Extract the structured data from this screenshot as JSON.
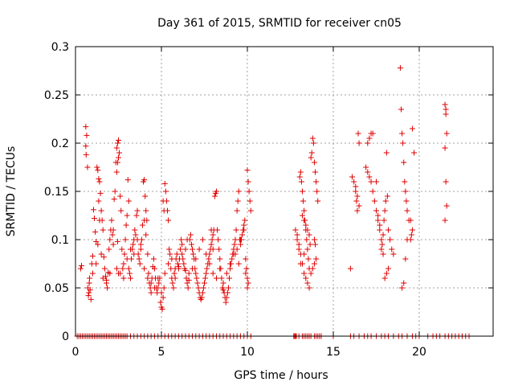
{
  "chart_data": {
    "type": "scatter",
    "title": "Day 361 of 2015, SRMTID for receiver cn05",
    "xlabel": "GPS time / hours",
    "ylabel": "SRMTID / TECUs",
    "xlim": [
      0,
      24.3
    ],
    "ylim": [
      0,
      0.3
    ],
    "xticks": [
      0,
      5,
      10,
      15,
      20
    ],
    "xtick_labels": [
      "0",
      "5",
      "10",
      "15",
      "20"
    ],
    "yticks": [
      0,
      0.05,
      0.1,
      0.15,
      0.2,
      0.25,
      0.3
    ],
    "ytick_labels": [
      "0",
      "0.05",
      "0.1",
      "0.15",
      "0.2",
      "0.25",
      "0.3"
    ],
    "grid": true,
    "marker": "plus",
    "marker_color": "#e00000",
    "series": [
      {
        "name": "SRMTID",
        "x": [
          0.3,
          0.35,
          0.6,
          0.65,
          0.6,
          0.62,
          0.7,
          0.72,
          0.75,
          0.78,
          0.8,
          0.82,
          0.85,
          0.9,
          0.95,
          1.0,
          1.05,
          1.1,
          1.15,
          1.2,
          1.25,
          1.3,
          1.35,
          1.4,
          1.45,
          1.5,
          1.55,
          1.6,
          1.65,
          1.7,
          1.75,
          1.8,
          1.85,
          1.9,
          1.95,
          2.0,
          2.05,
          2.1,
          2.15,
          2.2,
          2.25,
          2.3,
          2.35,
          2.4,
          2.45,
          2.5,
          2.55,
          2.6,
          2.65,
          2.7,
          2.75,
          2.8,
          2.85,
          2.9,
          2.95,
          3.0,
          3.05,
          3.1,
          3.15,
          3.2,
          3.25,
          3.3,
          3.35,
          3.4,
          3.45,
          3.5,
          3.55,
          3.6,
          3.65,
          3.7,
          3.75,
          3.8,
          3.85,
          3.9,
          3.95,
          4.0,
          4.05,
          4.1,
          4.15,
          4.2,
          4.25,
          4.3,
          4.35,
          4.4,
          4.45,
          4.5,
          4.55,
          4.6,
          4.65,
          4.7,
          4.75,
          4.8,
          4.85,
          4.9,
          4.95,
          5.0,
          5.05,
          5.1,
          5.15,
          5.2,
          5.25,
          5.3,
          5.35,
          5.4,
          5.45,
          5.5,
          5.55,
          5.6,
          5.65,
          5.7,
          5.75,
          5.8,
          5.85,
          5.9,
          5.95,
          6.0,
          6.05,
          6.1,
          6.15,
          6.2,
          6.25,
          6.3,
          6.35,
          6.4,
          6.45,
          6.5,
          6.55,
          6.6,
          6.65,
          6.7,
          6.75,
          6.8,
          6.85,
          6.9,
          6.95,
          7.0,
          7.05,
          7.1,
          7.15,
          7.2,
          7.25,
          7.3,
          7.35,
          7.4,
          7.45,
          7.5,
          7.55,
          7.6,
          7.65,
          7.7,
          7.75,
          7.8,
          7.85,
          7.9,
          7.95,
          8.0,
          8.05,
          8.1,
          8.15,
          8.2,
          8.25,
          8.3,
          8.35,
          8.4,
          8.45,
          8.5,
          8.55,
          8.6,
          8.65,
          8.7,
          8.75,
          8.8,
          8.85,
          8.9,
          8.95,
          9.0,
          9.05,
          9.1,
          9.15,
          9.2,
          9.25,
          9.3,
          9.35,
          9.4,
          9.45,
          9.5,
          9.55,
          9.6,
          9.65,
          9.7,
          9.75,
          9.8,
          9.85,
          9.9,
          9.95,
          10.0,
          10.05,
          10.1,
          10.15,
          10.2,
          1.0,
          1.2,
          1.4,
          1.6,
          1.8,
          2.0,
          2.2,
          2.4,
          2.6,
          2.8,
          3.0,
          3.2,
          3.4,
          3.6,
          3.8,
          4.0,
          4.2,
          4.4,
          4.6,
          4.8,
          5.0,
          5.2,
          5.4,
          5.6,
          5.8,
          6.0,
          6.2,
          6.4,
          6.6,
          6.8,
          7.0,
          7.2,
          7.4,
          7.6,
          7.8,
          8.0,
          8.2,
          8.4,
          8.6,
          8.8,
          9.0,
          9.2,
          9.4,
          9.6,
          9.8,
          10.0,
          1.3,
          1.35,
          1.5,
          2.4,
          2.45,
          2.5,
          2.45,
          2.5,
          3.1,
          4.0,
          4.1,
          5.1,
          5.15,
          6.5,
          7.9,
          8.0,
          9.3,
          9.5,
          9.9,
          10.0,
          10.05,
          12.8,
          12.9,
          13.0,
          13.05,
          13.1,
          13.15,
          13.2,
          13.25,
          13.3,
          13.35,
          13.4,
          13.45,
          13.5,
          13.55,
          13.6,
          13.65,
          13.7,
          13.75,
          13.8,
          13.85,
          13.9,
          13.95,
          14.0,
          14.05,
          14.1,
          12.9,
          13.0,
          13.1,
          13.2,
          13.3,
          13.4,
          13.5,
          13.6,
          13.7,
          13.8,
          13.9,
          14.0,
          13.2,
          13.3,
          13.4,
          13.5,
          13.6,
          13.3,
          13.1,
          13.9,
          13.95,
          16.0,
          16.1,
          16.2,
          16.3,
          16.35,
          16.4,
          16.45,
          16.5,
          16.9,
          17.0,
          17.1,
          17.2,
          17.3,
          17.4,
          17.5,
          17.6,
          17.7,
          17.8,
          17.85,
          17.9,
          17.95,
          18.0,
          18.05,
          18.1,
          18.15,
          18.2,
          18.3,
          18.4,
          18.5,
          16.3,
          16.4,
          16.5,
          17.0,
          17.1,
          17.2,
          17.3,
          17.5,
          17.6,
          17.7,
          17.8,
          17.9,
          18.0,
          18.1,
          18.2,
          18.9,
          18.95,
          19.0,
          19.05,
          19.1,
          19.15,
          19.2,
          19.25,
          19.3,
          19.4,
          19.5,
          19.55,
          19.6,
          19.7,
          19.0,
          19.1,
          19.2,
          19.3,
          19.5,
          19.6,
          21.5,
          21.55,
          21.6,
          21.5,
          21.55,
          21.6,
          21.5,
          21.55,
          0.1,
          0.2,
          0.3,
          0.4,
          0.5,
          0.6,
          0.7,
          0.8,
          0.9,
          1.0,
          1.1,
          1.2,
          1.3,
          1.4,
          1.5,
          1.6,
          1.7,
          1.8,
          1.9,
          2.0,
          2.1,
          2.2,
          2.3,
          2.4,
          2.5,
          2.6,
          2.7,
          2.8,
          2.9,
          3.0,
          3.2,
          3.4,
          3.6,
          3.8,
          4.0,
          4.2,
          4.4,
          4.6,
          4.8,
          5.0,
          5.2,
          5.4,
          5.6,
          5.8,
          6.0,
          6.2,
          6.4,
          6.6,
          6.8,
          7.0,
          7.2,
          7.4,
          7.6,
          7.8,
          8.0,
          8.2,
          8.4,
          8.6,
          8.8,
          9.0,
          9.2,
          9.4,
          9.6,
          9.8,
          10.0,
          10.2,
          12.7,
          12.75,
          12.8,
          12.85,
          13.0,
          13.2,
          13.3,
          13.4,
          13.5,
          13.6,
          13.7,
          13.9,
          14.0,
          14.1,
          14.2,
          14.3,
          15.0,
          16.0,
          16.2,
          16.5,
          16.8,
          17.0,
          17.2,
          17.5,
          17.8,
          18.0,
          18.2,
          18.5,
          18.8,
          19.0,
          19.3,
          19.6,
          19.8,
          20.0,
          20.5,
          20.8,
          21.0,
          21.2,
          21.5,
          21.7,
          21.9,
          22.1,
          22.3,
          22.5,
          22.7,
          22.9
        ],
        "y": [
          0.07,
          0.073,
          0.217,
          0.208,
          0.197,
          0.188,
          0.175,
          0.05,
          0.042,
          0.045,
          0.055,
          0.06,
          0.048,
          0.038,
          0.075,
          0.083,
          0.131,
          0.122,
          0.108,
          0.098,
          0.175,
          0.172,
          0.163,
          0.16,
          0.148,
          0.13,
          0.12,
          0.11,
          0.082,
          0.07,
          0.062,
          0.058,
          0.05,
          0.066,
          0.09,
          0.1,
          0.11,
          0.12,
          0.105,
          0.095,
          0.142,
          0.15,
          0.18,
          0.195,
          0.2,
          0.203,
          0.19,
          0.145,
          0.13,
          0.09,
          0.07,
          0.06,
          0.085,
          0.1,
          0.115,
          0.125,
          0.162,
          0.07,
          0.065,
          0.06,
          0.08,
          0.09,
          0.095,
          0.1,
          0.11,
          0.105,
          0.125,
          0.13,
          0.085,
          0.08,
          0.075,
          0.09,
          0.1,
          0.115,
          0.16,
          0.162,
          0.145,
          0.13,
          0.12,
          0.085,
          0.065,
          0.055,
          0.05,
          0.045,
          0.06,
          0.072,
          0.08,
          0.07,
          0.06,
          0.05,
          0.045,
          0.05,
          0.055,
          0.06,
          0.035,
          0.03,
          0.028,
          0.04,
          0.05,
          0.158,
          0.15,
          0.14,
          0.13,
          0.12,
          0.09,
          0.085,
          0.07,
          0.06,
          0.055,
          0.05,
          0.065,
          0.07,
          0.08,
          0.085,
          0.075,
          0.07,
          0.08,
          0.09,
          0.1,
          0.095,
          0.08,
          0.075,
          0.07,
          0.068,
          0.06,
          0.055,
          0.05,
          0.058,
          0.1,
          0.105,
          0.095,
          0.09,
          0.085,
          0.08,
          0.07,
          0.065,
          0.06,
          0.055,
          0.05,
          0.045,
          0.04,
          0.038,
          0.04,
          0.045,
          0.05,
          0.055,
          0.06,
          0.065,
          0.07,
          0.075,
          0.08,
          0.085,
          0.09,
          0.095,
          0.1,
          0.105,
          0.11,
          0.145,
          0.148,
          0.15,
          0.11,
          0.1,
          0.09,
          0.08,
          0.07,
          0.06,
          0.05,
          0.048,
          0.045,
          0.04,
          0.035,
          0.04,
          0.045,
          0.05,
          0.06,
          0.07,
          0.075,
          0.08,
          0.085,
          0.09,
          0.095,
          0.1,
          0.11,
          0.13,
          0.14,
          0.15,
          0.1,
          0.095,
          0.1,
          0.105,
          0.11,
          0.115,
          0.12,
          0.08,
          0.07,
          0.172,
          0.16,
          0.15,
          0.14,
          0.13,
          0.065,
          0.075,
          0.12,
          0.06,
          0.055,
          0.065,
          0.11,
          0.07,
          0.065,
          0.075,
          0.08,
          0.09,
          0.085,
          0.1,
          0.095,
          0.07,
          0.06,
          0.055,
          0.05,
          0.06,
          0.045,
          0.065,
          0.075,
          0.08,
          0.06,
          0.072,
          0.085,
          0.09,
          0.065,
          0.07,
          0.08,
          0.09,
          0.1,
          0.085,
          0.075,
          0.065,
          0.06,
          0.07,
          0.055,
          0.065,
          0.075,
          0.085,
          0.09,
          0.1,
          0.11,
          0.05,
          0.095,
          0.14,
          0.085,
          0.17,
          0.18,
          0.185,
          0.098,
          0.065,
          0.14,
          0.12,
          0.105,
          0.14,
          0.13,
          0.1,
          0.11,
          0.09,
          0.085,
          0.075,
          0.065,
          0.06,
          0.055,
          0.11,
          0.1,
          0.09,
          0.165,
          0.17,
          0.16,
          0.15,
          0.14,
          0.13,
          0.12,
          0.11,
          0.1,
          0.09,
          0.08,
          0.07,
          0.095,
          0.185,
          0.19,
          0.205,
          0.2,
          0.18,
          0.17,
          0.16,
          0.15,
          0.14,
          0.105,
          0.095,
          0.085,
          0.075,
          0.065,
          0.06,
          0.055,
          0.05,
          0.065,
          0.07,
          0.075,
          0.08,
          0.125,
          0.12,
          0.115,
          0.11,
          0.105,
          0.085,
          0.075,
          0.1,
          0.095,
          0.07,
          0.165,
          0.16,
          0.15,
          0.14,
          0.13,
          0.21,
          0.2,
          0.175,
          0.17,
          0.165,
          0.16,
          0.15,
          0.14,
          0.13,
          0.12,
          0.11,
          0.1,
          0.095,
          0.105,
          0.12,
          0.13,
          0.14,
          0.19,
          0.145,
          0.11,
          0.1,
          0.09,
          0.085,
          0.155,
          0.145,
          0.135,
          0.2,
          0.205,
          0.21,
          0.21,
          0.16,
          0.125,
          0.115,
          0.09,
          0.085,
          0.06,
          0.065,
          0.07,
          0.278,
          0.235,
          0.21,
          0.2,
          0.18,
          0.16,
          0.15,
          0.14,
          0.13,
          0.12,
          0.1,
          0.105,
          0.215,
          0.19,
          0.05,
          0.055,
          0.08,
          0.1,
          0.12,
          0.11,
          0.24,
          0.235,
          0.21,
          0.195,
          0.16,
          0.135,
          0.12,
          0.23,
          0,
          0,
          0,
          0,
          0,
          0,
          0,
          0,
          0,
          0,
          0,
          0,
          0,
          0,
          0,
          0,
          0,
          0,
          0,
          0,
          0,
          0,
          0,
          0,
          0,
          0,
          0,
          0,
          0,
          0,
          0,
          0,
          0,
          0,
          0,
          0,
          0,
          0,
          0,
          0,
          0,
          0,
          0,
          0,
          0,
          0,
          0,
          0,
          0,
          0,
          0,
          0,
          0,
          0,
          0,
          0,
          0,
          0,
          0,
          0,
          0,
          0,
          0,
          0,
          0,
          0,
          0,
          0,
          0,
          0,
          0,
          0,
          0,
          0,
          0,
          0,
          0,
          0,
          0,
          0,
          0,
          0,
          0,
          0,
          0,
          0,
          0,
          0,
          0,
          0,
          0,
          0,
          0,
          0,
          0,
          0,
          0,
          0,
          0,
          0,
          0,
          0,
          0,
          0,
          0,
          0,
          0,
          0,
          0,
          0,
          0,
          0
        ]
      }
    ]
  }
}
